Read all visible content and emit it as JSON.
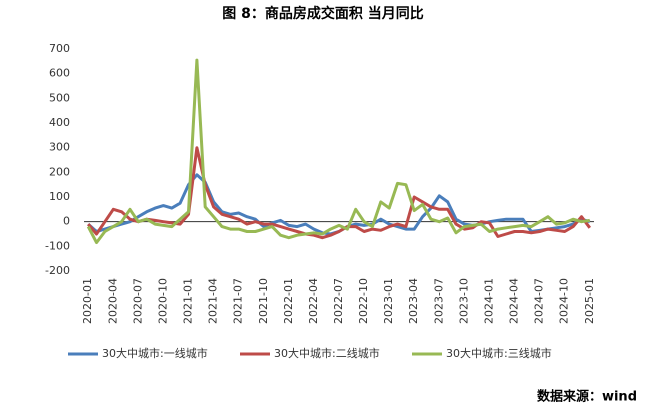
{
  "chart_data": {
    "type": "line",
    "title": "图 8：商品房成交面积 当月同比",
    "source": "数据来源：wind",
    "categories": [
      "2020-01",
      null,
      null,
      "2020-04",
      null,
      null,
      "2020-07",
      null,
      null,
      "2020-10",
      null,
      null,
      "2021-01",
      null,
      null,
      "2021-04",
      null,
      null,
      "2021-07",
      null,
      null,
      "2021-10",
      null,
      null,
      "2022-01",
      null,
      null,
      "2022-04",
      null,
      null,
      "2022-07",
      null,
      null,
      "2022-10",
      null,
      null,
      "2023-01",
      null,
      null,
      "2023-04",
      null,
      null,
      "2023-07",
      null,
      null,
      "2023-10",
      null,
      null,
      "2024-01",
      null,
      null,
      "2024-04",
      null,
      null,
      "2024-07",
      null,
      null,
      "2024-10",
      null,
      null,
      "2025-01"
    ],
    "series": [
      {
        "name": "30大中城市:一线城市",
        "color": "#4a7ebb",
        "values": [
          -10,
          -40,
          -30,
          -20,
          -10,
          0,
          20,
          40,
          55,
          65,
          55,
          75,
          150,
          190,
          160,
          80,
          40,
          30,
          35,
          20,
          10,
          -20,
          -5,
          5,
          -15,
          -20,
          -10,
          -30,
          -45,
          -50,
          -40,
          -20,
          -10,
          -15,
          -10,
          10,
          -10,
          -20,
          -30,
          -30,
          20,
          55,
          105,
          80,
          10,
          -10,
          -15,
          -10,
          0,
          5,
          10,
          10,
          10,
          -40,
          -35,
          -30,
          -25,
          -20,
          -10,
          10,
          0
        ]
      },
      {
        "name": "30大中城市:二线城市",
        "color": "#be4b48",
        "values": [
          -10,
          -50,
          0,
          50,
          40,
          10,
          0,
          10,
          5,
          0,
          -5,
          -10,
          30,
          300,
          150,
          60,
          30,
          20,
          10,
          -10,
          0,
          -10,
          -10,
          -20,
          -30,
          -40,
          -50,
          -55,
          -65,
          -55,
          -40,
          -20,
          -20,
          -40,
          -30,
          -35,
          -20,
          -10,
          -20,
          100,
          80,
          60,
          50,
          50,
          -10,
          -30,
          -25,
          0,
          -5,
          -60,
          -50,
          -40,
          -40,
          -45,
          -40,
          -30,
          -35,
          -40,
          -20,
          20,
          -25
        ]
      },
      {
        "name": "30大中城市:三线城市",
        "color": "#98b954",
        "values": [
          -20,
          -85,
          -40,
          -20,
          0,
          50,
          0,
          10,
          -10,
          -15,
          -20,
          10,
          40,
          655,
          60,
          20,
          -20,
          -30,
          -30,
          -40,
          -40,
          -30,
          -20,
          -55,
          -65,
          -55,
          -50,
          -45,
          -50,
          -30,
          -15,
          -30,
          50,
          0,
          -20,
          80,
          55,
          155,
          150,
          45,
          70,
          10,
          0,
          15,
          -45,
          -20,
          -15,
          -10,
          -40,
          -30,
          -25,
          -20,
          -15,
          -20,
          0,
          20,
          -10,
          -5,
          10,
          0,
          5
        ]
      }
    ],
    "ylim": [
      -200,
      700
    ],
    "yticks": [
      -200,
      -100,
      0,
      100,
      200,
      300,
      400,
      500,
      600,
      700
    ]
  }
}
